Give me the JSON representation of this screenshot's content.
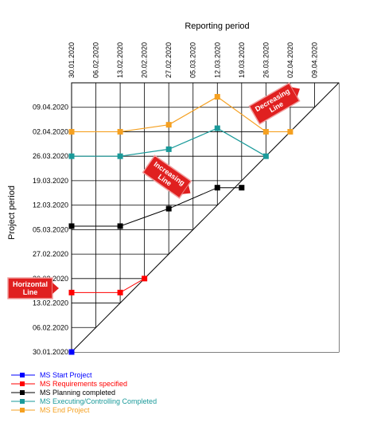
{
  "chart_data": {
    "type": "line",
    "xlabel": "Reporting period",
    "ylabel": "Project period",
    "x_ticks": [
      "30.01.2020",
      "06.02.2020",
      "13.02.2020",
      "20.02.2020",
      "27.02.2020",
      "05.03.2020",
      "12.03.2020",
      "19.03.2020",
      "26.03.2020",
      "02.04.2020",
      "09.04.2020"
    ],
    "y_ticks": [
      "09.04.2020",
      "02.04.2020",
      "26.03.2020",
      "19.03.2020",
      "12.03.2020",
      "05.03.2020",
      "27.02.2020",
      "20.02.2020",
      "13.02.2020",
      "06.02.2020",
      "30.01.2020"
    ],
    "series": [
      {
        "name": "MS Start Project",
        "color": "#0000ff",
        "points": [
          [
            "30.01.2020",
            "30.01.2020"
          ]
        ]
      },
      {
        "name": "MS Requirements specified",
        "color": "#ff0000",
        "points": [
          [
            "30.01.2020",
            "16.02.2020"
          ],
          [
            "13.02.2020",
            "16.02.2020"
          ],
          [
            "20.02.2020",
            "20.02.2020"
          ]
        ]
      },
      {
        "name": "MS Planning completed",
        "color": "#000000",
        "points": [
          [
            "30.01.2020",
            "06.03.2020"
          ],
          [
            "13.02.2020",
            "06.03.2020"
          ],
          [
            "27.02.2020",
            "11.03.2020"
          ],
          [
            "12.03.2020",
            "17.03.2020"
          ],
          [
            "19.03.2020",
            "17.03.2020"
          ]
        ]
      },
      {
        "name": "MS Executing/Controlling Completed",
        "color": "#1a9a9a",
        "points": [
          [
            "30.01.2020",
            "26.03.2020"
          ],
          [
            "13.02.2020",
            "26.03.2020"
          ],
          [
            "27.02.2020",
            "28.03.2020"
          ],
          [
            "12.03.2020",
            "03.04.2020"
          ],
          [
            "26.03.2020",
            "26.03.2020"
          ]
        ]
      },
      {
        "name": "MS End Project",
        "color": "#f5a020",
        "points": [
          [
            "30.01.2020",
            "02.04.2020"
          ],
          [
            "13.02.2020",
            "02.04.2020"
          ],
          [
            "27.02.2020",
            "04.04.2020"
          ],
          [
            "12.03.2020",
            "12.04.2020"
          ],
          [
            "26.03.2020",
            "02.04.2020"
          ],
          [
            "02.04.2020",
            "02.04.2020"
          ]
        ]
      }
    ],
    "annotations": [
      {
        "text": "Horizontal Line",
        "at": [
          "30.01.2020",
          "16.02.2020"
        ]
      },
      {
        "text": "Increasing Line",
        "at": [
          "27.02.2020",
          "11.03.2020"
        ]
      },
      {
        "text": "Decreasing Line",
        "at": [
          "26.03.2020",
          "02.04.2020"
        ]
      }
    ],
    "legend_position": "bottom-left",
    "grid": true
  }
}
